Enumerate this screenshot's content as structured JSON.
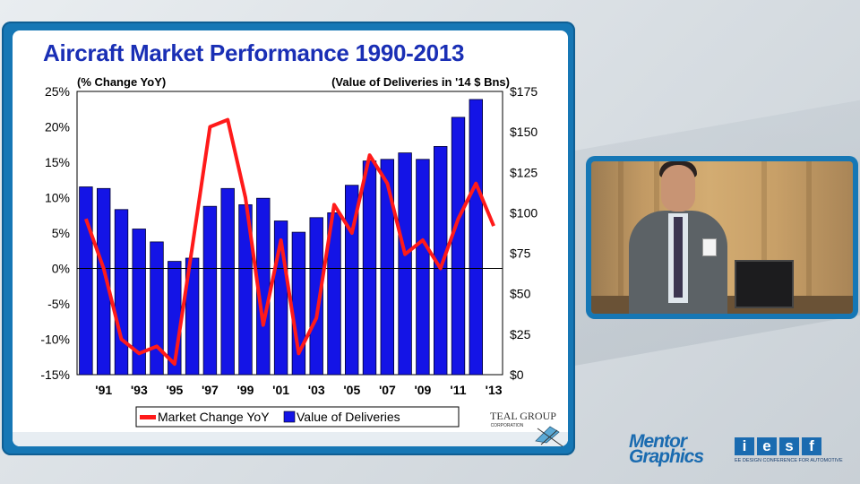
{
  "slide": {
    "title": "Aircraft Market Performance 1990-2013"
  },
  "chart_data": {
    "type": "bar",
    "left_axis_label": "(% Change YoY)",
    "right_axis_label": "(Value of Deliveries in '14 $ Bns)",
    "left_ticks": [
      "25%",
      "20%",
      "15%",
      "10%",
      "5%",
      "0%",
      "-5%",
      "-10%",
      "-15%"
    ],
    "left_ylim": [
      -15,
      25
    ],
    "right_ticks": [
      "$175",
      "$150",
      "$125",
      "$100",
      "$75",
      "$50",
      "$25",
      "$0"
    ],
    "right_ylim": [
      0,
      175
    ],
    "x": [
      1990,
      1991,
      1992,
      1993,
      1994,
      1995,
      1996,
      1997,
      1998,
      1999,
      2000,
      2001,
      2002,
      2003,
      2004,
      2005,
      2006,
      2007,
      2008,
      2009,
      2010,
      2011,
      2012,
      2013
    ],
    "x_tick_labels": [
      "'91",
      "'93",
      "'95",
      "'97",
      "'99",
      "'01",
      "'03",
      "'05",
      "'07",
      "'09",
      "'11",
      "'13"
    ],
    "series": [
      {
        "name": "Value of Deliveries",
        "kind": "bar",
        "axis": "right",
        "color": "#1414e6",
        "values": [
          116,
          115,
          102,
          90,
          82,
          70,
          72,
          104,
          115,
          105,
          109,
          95,
          88,
          97,
          100,
          117,
          132,
          133,
          137,
          133,
          141,
          159,
          170,
          0
        ]
      },
      {
        "name": "Market Change YoY",
        "kind": "line",
        "axis": "left",
        "color": "#ff1a1a",
        "values": [
          7,
          0,
          -10,
          -12,
          -11,
          -13.5,
          3,
          20,
          21,
          10,
          -8,
          4,
          -12,
          -7,
          9,
          5,
          16,
          12,
          2,
          4,
          0,
          7,
          12,
          6
        ]
      }
    ],
    "legend": {
      "placement": "bottom",
      "entries": [
        "Market Change YoY",
        "Value of Deliveries"
      ]
    },
    "grid": false,
    "source_logo": {
      "name": "TEAL GROUP",
      "sub": "CORPORATION"
    }
  },
  "video": {
    "description_icon": "presenter-video"
  },
  "footer_logos": {
    "mentor_line1": "Mentor",
    "mentor_line2": "Graphics",
    "iesf_letters": [
      "i",
      "e",
      "s",
      "f"
    ],
    "iesf_sub": "EE DESIGN CONFERENCE FOR AUTOMOTIVE"
  },
  "colors": {
    "frame": "#1677b5",
    "title": "#1a2fb5"
  }
}
